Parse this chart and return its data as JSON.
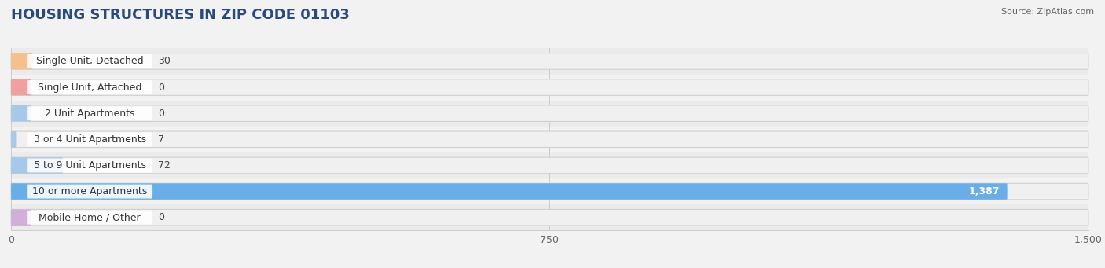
{
  "title": "HOUSING STRUCTURES IN ZIP CODE 01103",
  "source": "Source: ZipAtlas.com",
  "categories": [
    "Single Unit, Detached",
    "Single Unit, Attached",
    "2 Unit Apartments",
    "3 or 4 Unit Apartments",
    "5 to 9 Unit Apartments",
    "10 or more Apartments",
    "Mobile Home / Other"
  ],
  "values": [
    30,
    0,
    0,
    7,
    72,
    1387,
    0
  ],
  "bar_colors": [
    "#f5c090",
    "#f0a0a0",
    "#a8c8e8",
    "#a8c8e8",
    "#a8c8e8",
    "#6aaee8",
    "#d0b0d8"
  ],
  "label_bg_colors": [
    "#fef0e0",
    "#fde8e8",
    "#e8f2fc",
    "#e8f2fc",
    "#e8f2fc",
    "#e8f2fc",
    "#f0eaf4"
  ],
  "xlim": [
    0,
    1500
  ],
  "xticks": [
    0,
    750,
    1500
  ],
  "xticklabels": [
    "0",
    "750",
    "1,500"
  ],
  "value_labels": [
    "30",
    "0",
    "0",
    "7",
    "72",
    "1,387",
    "0"
  ],
  "background_color": "#f2f2f2",
  "title_color": "#2a4a7f",
  "title_fontsize": 13,
  "label_fontsize": 9,
  "value_fontsize": 9,
  "bar_height": 0.62,
  "pill_bg_color": "#e8e8e8",
  "pill_bg_outline": "#d8d8d8",
  "row_bg_color": "#ebebeb",
  "row_bg_alt": "#f2f2f2"
}
